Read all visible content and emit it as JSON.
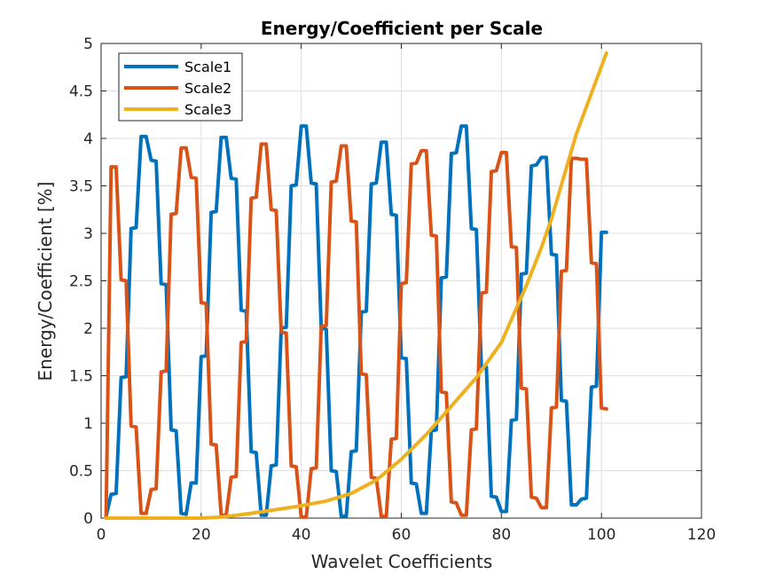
{
  "chart_data": {
    "type": "line",
    "title": "Energy/Coefficient per Scale",
    "xlabel": "Wavelet Coefficients",
    "ylabel": "Energy/Coefficient [%]",
    "xlim": [
      0,
      120
    ],
    "ylim": [
      0,
      5
    ],
    "xticks": [
      "0",
      "20",
      "40",
      "60",
      "80",
      "100",
      "120"
    ],
    "yticks": [
      "0",
      "0.5",
      "1",
      "1.5",
      "2",
      "2.5",
      "3",
      "3.5",
      "4",
      "4.5",
      "5"
    ],
    "grid": true,
    "legend_position": "top-left",
    "series": [
      {
        "name": "Scale1",
        "color": "#0072BD",
        "x": [
          1,
          2,
          3,
          4,
          5,
          6,
          7,
          8,
          9,
          10,
          11,
          12,
          13,
          14,
          15,
          16,
          17,
          18,
          19,
          20,
          21,
          22,
          23,
          24,
          25,
          26,
          27,
          28,
          29,
          30,
          31,
          32,
          33,
          34,
          35,
          36,
          37,
          38,
          39,
          40,
          41,
          42,
          43,
          44,
          45,
          46,
          47,
          48,
          49,
          50,
          51,
          52,
          53,
          54,
          55,
          56,
          57,
          58,
          59,
          60,
          61,
          62,
          63,
          64,
          65,
          66,
          67,
          68,
          69,
          70,
          71,
          72,
          73,
          74,
          75,
          76,
          77,
          78,
          79,
          80,
          81,
          82,
          83,
          84,
          85,
          86,
          87,
          88,
          89,
          90,
          91,
          92,
          93,
          94,
          95,
          96,
          97,
          98,
          99,
          100,
          101
        ],
        "y": [
          0.02,
          0.25,
          0.26,
          1.48,
          1.49,
          3.05,
          3.06,
          4.02,
          4.02,
          3.77,
          3.76,
          2.47,
          2.46,
          0.93,
          0.92,
          0.05,
          0.04,
          0.37,
          0.37,
          1.7,
          1.71,
          3.22,
          3.23,
          4.01,
          4.01,
          3.58,
          3.57,
          2.19,
          2.18,
          0.7,
          0.69,
          0.03,
          0.03,
          0.55,
          0.56,
          2.0,
          2.01,
          3.5,
          3.51,
          4.13,
          4.13,
          3.53,
          3.52,
          2.0,
          1.99,
          0.5,
          0.49,
          0.02,
          0.02,
          0.7,
          0.71,
          2.17,
          2.18,
          3.52,
          3.53,
          3.96,
          3.96,
          3.2,
          3.19,
          1.69,
          1.68,
          0.37,
          0.36,
          0.05,
          0.05,
          0.92,
          0.93,
          2.53,
          2.54,
          3.84,
          3.85,
          4.13,
          4.13,
          3.05,
          3.04,
          1.6,
          1.59,
          0.23,
          0.22,
          0.07,
          0.07,
          1.03,
          1.04,
          2.57,
          2.58,
          3.71,
          3.72,
          3.8,
          3.8,
          2.78,
          2.77,
          1.24,
          1.23,
          0.14,
          0.14,
          0.2,
          0.21,
          1.38,
          1.39,
          3.01,
          3.01
        ]
      },
      {
        "name": "Scale2",
        "color": "#D95319",
        "x": [
          1,
          2,
          3,
          4,
          5,
          6,
          7,
          8,
          9,
          10,
          11,
          12,
          13,
          14,
          15,
          16,
          17,
          18,
          19,
          20,
          21,
          22,
          23,
          24,
          25,
          26,
          27,
          28,
          29,
          30,
          31,
          32,
          33,
          34,
          35,
          36,
          37,
          38,
          39,
          40,
          41,
          42,
          43,
          44,
          45,
          46,
          47,
          48,
          49,
          50,
          51,
          52,
          53,
          54,
          55,
          56,
          57,
          58,
          59,
          60,
          61,
          62,
          63,
          64,
          65,
          66,
          67,
          68,
          69,
          70,
          71,
          72,
          73,
          74,
          75,
          76,
          77,
          78,
          79,
          80,
          81,
          82,
          83,
          84,
          85,
          86,
          87,
          88,
          89,
          90,
          91,
          92,
          93,
          94,
          95,
          96,
          97,
          98,
          99,
          100,
          101
        ],
        "y": [
          0.02,
          3.7,
          3.7,
          2.51,
          2.5,
          0.97,
          0.96,
          0.05,
          0.05,
          0.3,
          0.31,
          1.54,
          1.55,
          3.2,
          3.21,
          3.9,
          3.9,
          3.59,
          3.58,
          2.27,
          2.26,
          0.78,
          0.77,
          0.03,
          0.03,
          0.43,
          0.44,
          1.85,
          1.86,
          3.37,
          3.38,
          3.94,
          3.94,
          3.25,
          3.24,
          1.96,
          1.95,
          0.55,
          0.54,
          0.01,
          0.01,
          0.52,
          0.53,
          2.02,
          2.03,
          3.54,
          3.55,
          3.92,
          3.92,
          3.13,
          3.12,
          1.52,
          1.51,
          0.43,
          0.42,
          0.02,
          0.02,
          0.83,
          0.84,
          2.47,
          2.48,
          3.73,
          3.74,
          3.87,
          3.87,
          2.98,
          2.97,
          1.33,
          1.32,
          0.17,
          0.16,
          0.03,
          0.03,
          0.93,
          0.94,
          2.37,
          2.38,
          3.65,
          3.66,
          3.85,
          3.85,
          2.86,
          2.85,
          1.37,
          1.36,
          0.22,
          0.21,
          0.11,
          0.11,
          1.16,
          1.17,
          2.6,
          2.61,
          3.79,
          3.79,
          3.78,
          3.78,
          2.69,
          2.68,
          1.16,
          1.15
        ]
      },
      {
        "name": "Scale3",
        "color": "#EDB120",
        "x": [
          1,
          5,
          10,
          15,
          20,
          24,
          30,
          35,
          40,
          45,
          50,
          55,
          60,
          65,
          70,
          75,
          80,
          85,
          88,
          90,
          95,
          101
        ],
        "y": [
          0.0,
          0.0,
          0.0,
          0.0,
          0.0,
          0.01,
          0.05,
          0.09,
          0.13,
          0.18,
          0.26,
          0.4,
          0.62,
          0.88,
          1.18,
          1.48,
          1.85,
          2.45,
          2.85,
          3.15,
          4.05,
          4.9
        ]
      }
    ]
  }
}
